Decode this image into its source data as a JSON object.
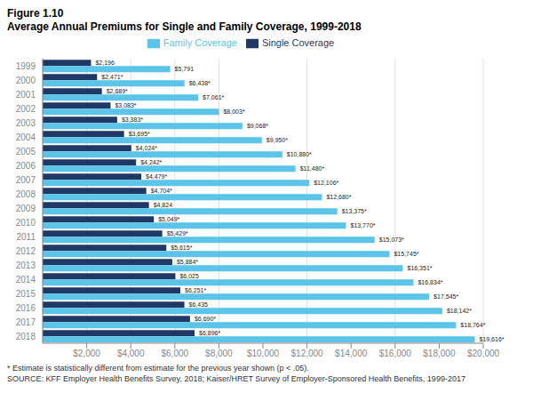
{
  "chart_data": {
    "type": "bar",
    "orientation": "horizontal",
    "title": "Figure 1.10",
    "subtitle": "Average Annual Premiums for Single and Family Coverage, 1999-2018",
    "categories": [
      "1999",
      "2000",
      "2001",
      "2002",
      "2003",
      "2004",
      "2005",
      "2006",
      "2007",
      "2008",
      "2009",
      "2010",
      "2011",
      "2012",
      "2013",
      "2014",
      "2015",
      "2016",
      "2017",
      "2018"
    ],
    "series": [
      {
        "name": "Single Coverage",
        "color": "#1f3864",
        "values": [
          2196,
          2471,
          2689,
          3083,
          3383,
          3695,
          4024,
          4242,
          4479,
          4704,
          4824,
          5049,
          5429,
          5615,
          5884,
          6025,
          6251,
          6435,
          6690,
          6896
        ],
        "value_labels": [
          "$2,196",
          "$2,471*",
          "$2,689*",
          "$3,083*",
          "$3,383*",
          "$3,695*",
          "$4,024*",
          "$4,242*",
          "$4,479*",
          "$4,704*",
          "$4,824",
          "$5,049*",
          "$5,429*",
          "$5,615*",
          "$5,884*",
          "$6,025",
          "$6,251*",
          "$6,435",
          "$6,690*",
          "$6,896*"
        ]
      },
      {
        "name": "Family Coverage",
        "color": "#5bc4e8",
        "values": [
          5791,
          6438,
          7061,
          8003,
          9068,
          9950,
          10880,
          11480,
          12106,
          12680,
          13375,
          13770,
          15073,
          15745,
          16351,
          16834,
          17545,
          18142,
          18764,
          19616
        ],
        "value_labels": [
          "$5,791",
          "$6,438*",
          "$7,061*",
          "$8,003*",
          "$9,068*",
          "$9,950*",
          "$10,880*",
          "$11,480*",
          "$12,106*",
          "$12,680*",
          "$13,375*",
          "$13,770*",
          "$15,073*",
          "$15,745*",
          "$16,351*",
          "$16,834*",
          "$17,545*",
          "$18,142*",
          "$18,764*",
          "$19,616*"
        ]
      }
    ],
    "xlim": [
      0,
      20000
    ],
    "xticks": [
      {
        "value": 2000,
        "label": "$2,000"
      },
      {
        "value": 4000,
        "label": "$4,000"
      },
      {
        "value": 6000,
        "label": "$6,000"
      },
      {
        "value": 8000,
        "label": "$8,000"
      },
      {
        "value": 10000,
        "label": "$10,000"
      },
      {
        "value": 12000,
        "label": "$12,000"
      },
      {
        "value": 14000,
        "label": "$14,000"
      },
      {
        "value": 16000,
        "label": "$16,000"
      },
      {
        "value": 18000,
        "label": "$18,000"
      },
      {
        "value": 20000,
        "label": "$20,000"
      }
    ],
    "grid": true,
    "legend": "top",
    "data_labels": true,
    "annotations": [
      "* Estimate is statistically different from estimate for the previous year shown (p < .05).",
      "SOURCE: KFF Employer Health Benefits Survey, 2018; Kaiser/HRET Survey of Employer-Sponsored Health Benefits, 1999-2017"
    ]
  }
}
